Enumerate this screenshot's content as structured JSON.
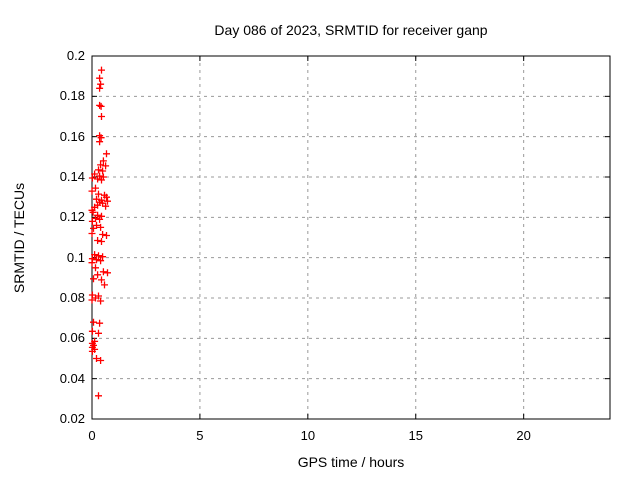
{
  "title": "Day 086 of 2023, SRMTID for receiver ganp",
  "colors": {
    "marker": "#ff0000",
    "grid": "#999999",
    "axis": "#000000",
    "background": "#ffffff",
    "text": "#000000"
  },
  "chart_data": {
    "type": "scatter",
    "title": "Day 086 of 2023, SRMTID for receiver ganp",
    "xlabel": "GPS time / hours",
    "ylabel": "SRMTID / TECUs",
    "xlim": [
      0,
      24
    ],
    "ylim": [
      0.02,
      0.2
    ],
    "xticks": [
      0,
      5,
      10,
      15,
      20
    ],
    "xtick_labels": [
      "0",
      "5",
      "10",
      "15",
      "20"
    ],
    "yticks": [
      0.02,
      0.04,
      0.06,
      0.08,
      0.1,
      0.12,
      0.14,
      0.16,
      0.18,
      0.2
    ],
    "ytick_labels": [
      "0.02",
      "0.04",
      "0.06",
      "0.08",
      "0.1",
      "0.12",
      "0.14",
      "0.16",
      "0.18",
      "0.2"
    ],
    "grid": true,
    "grid_style": "dashed",
    "legend": "none",
    "marker": "plus",
    "series": [
      {
        "name": "SRMTID",
        "color": "#ff0000",
        "points": [
          [
            0.44,
            0.193
          ],
          [
            0.35,
            0.189
          ],
          [
            0.4,
            0.186
          ],
          [
            0.35,
            0.184
          ],
          [
            0.35,
            0.1755
          ],
          [
            0.42,
            0.175
          ],
          [
            0.44,
            0.17
          ],
          [
            0.35,
            0.1605
          ],
          [
            0.42,
            0.1595
          ],
          [
            0.35,
            0.1575
          ],
          [
            0.67,
            0.1515
          ],
          [
            0.53,
            0.148
          ],
          [
            0.4,
            0.146
          ],
          [
            0.63,
            0.1455
          ],
          [
            0.3,
            0.1435
          ],
          [
            0.49,
            0.143
          ],
          [
            0.12,
            0.1415
          ],
          [
            0.35,
            0.1405
          ],
          [
            0.53,
            0.14
          ],
          [
            0.02,
            0.1395
          ],
          [
            0.26,
            0.139
          ],
          [
            0.44,
            0.1385
          ],
          [
            0.16,
            0.1345
          ],
          [
            0.0,
            0.133
          ],
          [
            0.3,
            0.1315
          ],
          [
            0.58,
            0.131
          ],
          [
            0.67,
            0.13
          ],
          [
            0.21,
            0.129
          ],
          [
            0.44,
            0.1285
          ],
          [
            0.72,
            0.128
          ],
          [
            0.35,
            0.1275
          ],
          [
            0.49,
            0.127
          ],
          [
            0.26,
            0.126
          ],
          [
            0.63,
            0.1255
          ],
          [
            0.12,
            0.125
          ],
          [
            0.0,
            0.1235
          ],
          [
            0.05,
            0.1225
          ],
          [
            0.26,
            0.121
          ],
          [
            0.44,
            0.1205
          ],
          [
            0.16,
            0.1195
          ],
          [
            0.35,
            0.119
          ],
          [
            0.02,
            0.118
          ],
          [
            0.21,
            0.116
          ],
          [
            0.4,
            0.115
          ],
          [
            0.07,
            0.1145
          ],
          [
            0.0,
            0.112
          ],
          [
            0.49,
            0.1115
          ],
          [
            0.67,
            0.111
          ],
          [
            0.26,
            0.1085
          ],
          [
            0.44,
            0.108
          ],
          [
            0.12,
            0.1015
          ],
          [
            0.3,
            0.101
          ],
          [
            0.49,
            0.1005
          ],
          [
            0.02,
            0.0995
          ],
          [
            0.21,
            0.099
          ],
          [
            0.4,
            0.0985
          ],
          [
            0.0,
            0.0975
          ],
          [
            0.16,
            0.095
          ],
          [
            0.53,
            0.093
          ],
          [
            0.72,
            0.0925
          ],
          [
            0.26,
            0.0915
          ],
          [
            0.07,
            0.0895
          ],
          [
            0.44,
            0.089
          ],
          [
            0.58,
            0.0865
          ],
          [
            0.02,
            0.0815
          ],
          [
            0.3,
            0.081
          ],
          [
            0.16,
            0.08
          ],
          [
            0.0,
            0.079
          ],
          [
            0.4,
            0.0785
          ],
          [
            0.07,
            0.068
          ],
          [
            0.35,
            0.0675
          ],
          [
            0.02,
            0.0635
          ],
          [
            0.3,
            0.0625
          ],
          [
            0.12,
            0.0585
          ],
          [
            0.02,
            0.0575
          ],
          [
            0.07,
            0.0565
          ],
          [
            0.02,
            0.0555
          ],
          [
            0.12,
            0.0545
          ],
          [
            0.02,
            0.0535
          ],
          [
            0.21,
            0.05
          ],
          [
            0.4,
            0.049
          ],
          [
            0.3,
            0.0315
          ]
        ]
      }
    ]
  }
}
